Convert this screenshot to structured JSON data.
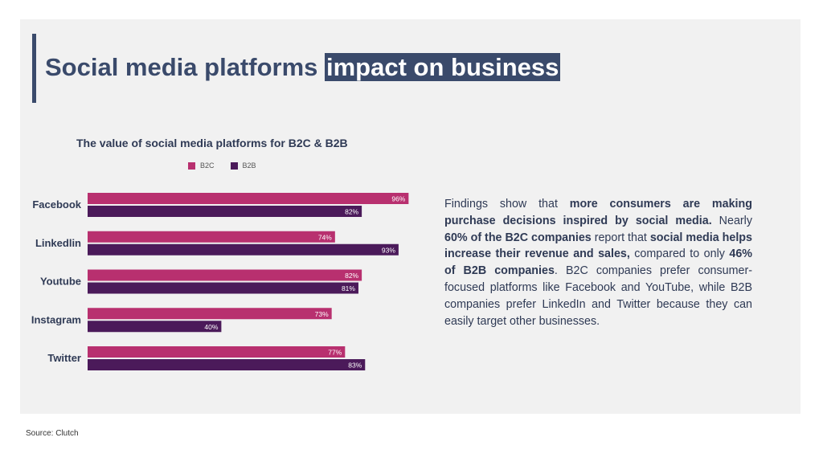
{
  "title": {
    "part1": "Social media platforms ",
    "highlight": "impact on business"
  },
  "chart_data": {
    "type": "bar",
    "orientation": "horizontal",
    "title": "The value of social media platforms for B2C & B2B",
    "categories": [
      "Facebook",
      "Linkedlin",
      "Youtube",
      "Instagram",
      "Twitter"
    ],
    "series": [
      {
        "name": "B2C",
        "color": "#b8306f",
        "values": [
          96,
          74,
          82,
          73,
          77
        ],
        "labels": [
          "96%",
          "74%",
          "82%",
          "73%",
          "77%"
        ]
      },
      {
        "name": "B2B",
        "color": "#4b1a5a",
        "values": [
          82,
          93,
          81,
          40,
          83
        ],
        "labels": [
          "82%",
          "93%",
          "81%",
          "40%",
          "83%"
        ]
      }
    ],
    "xlim": [
      0,
      100
    ],
    "legend": "top",
    "grid": false
  },
  "findings": {
    "p1": "Findings show that ",
    "b1": "more consumers are making purchase decisions inspired by social media.",
    "p2": " Nearly ",
    "b2": "60% of the B2C companies",
    "p3": " report that ",
    "b3": "social media helps increase their revenue and sales,",
    "p4": " compared to only ",
    "b4": "46% of B2B companies",
    "p5": ". B2C companies prefer consumer-focused platforms like Facebook and YouTube, while B2B companies prefer LinkedIn and Twitter because they can easily target other businesses."
  },
  "source": "Source: Clutch"
}
